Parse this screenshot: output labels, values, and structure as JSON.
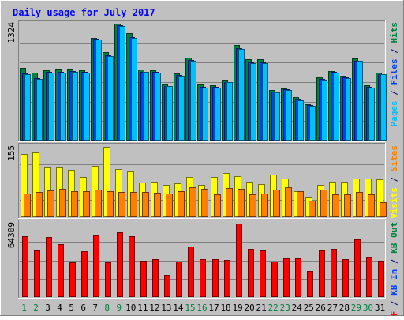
{
  "chart_data": {
    "type": "bar",
    "title": "Daily usage for July 2017",
    "categories": [
      "1",
      "2",
      "3",
      "4",
      "5",
      "6",
      "7",
      "8",
      "9",
      "10",
      "11",
      "12",
      "13",
      "14",
      "15",
      "16",
      "17",
      "18",
      "19",
      "20",
      "21",
      "22",
      "23",
      "24",
      "25",
      "26",
      "27",
      "28",
      "29",
      "30",
      "31"
    ],
    "weekend_days": [
      "1",
      "2",
      "8",
      "9",
      "15",
      "16",
      "22",
      "23",
      "29",
      "30"
    ],
    "grid": true,
    "panels": [
      {
        "id": "top",
        "max_label": "1324",
        "ymax": 1324,
        "legend": [
          {
            "text": "Pages",
            "color": "#00c0ff"
          },
          {
            "text": " / ",
            "color": "#000080"
          },
          {
            "text": "Files",
            "color": "#0040ff"
          },
          {
            "text": " / ",
            "color": "#000080"
          },
          {
            "text": "Hits",
            "color": "#008040"
          }
        ],
        "series": [
          {
            "name": "Hits",
            "color": "#008040",
            "values": [
              820,
              765,
              800,
              810,
              810,
              795,
              1165,
              1000,
              1324,
              1215,
              805,
              800,
              645,
              760,
              940,
              640,
              630,
              685,
              1085,
              920,
              920,
              570,
              590,
              490,
              410,
              720,
              790,
              730,
              930,
              625,
              765
            ]
          },
          {
            "name": "Files",
            "color": "#0040ff",
            "values": [
              760,
              710,
              775,
              775,
              785,
              775,
              1150,
              970,
              1305,
              1170,
              780,
              775,
              620,
              740,
              910,
              610,
              605,
              665,
              1050,
              885,
              885,
              555,
              580,
              475,
              400,
              695,
              775,
              720,
              905,
              610,
              755
            ]
          },
          {
            "name": "Pages",
            "color": "#00c0ff",
            "values": [
              755,
              700,
              770,
              770,
              780,
              770,
              1145,
              960,
              1300,
              1160,
              775,
              770,
              615,
              735,
              905,
              600,
              600,
              660,
              1040,
              880,
              880,
              550,
              575,
              460,
              395,
              690,
              770,
              710,
              900,
              600,
              750
            ]
          }
        ]
      },
      {
        "id": "middle",
        "max_label": "155",
        "ymax": 155,
        "legend": [
          {
            "text": "Visits",
            "color": "#ffff00"
          },
          {
            "text": " / ",
            "color": "#000080"
          },
          {
            "text": "Sites",
            "color": "#ff8000"
          }
        ],
        "series": [
          {
            "name": "Visits",
            "color": "#ffff00",
            "values": [
              140,
              142,
              112,
              112,
              105,
              88,
              113,
              155,
              106,
              101,
              76,
              78,
              71,
              75,
              88,
              72,
              88,
              98,
              91,
              78,
              74,
              94,
              86,
              58,
              45,
              71,
              78,
              78,
              86,
              86,
              83
            ]
          },
          {
            "name": "Sites",
            "color": "#ff8000",
            "values": [
              52,
              56,
              60,
              62,
              58,
              57,
              61,
              58,
              55,
              56,
              55,
              54,
              53,
              58,
              66,
              63,
              50,
              64,
              62,
              50,
              53,
              61,
              67,
              58,
              36,
              61,
              50,
              50,
              56,
              51,
              33
            ]
          }
        ]
      },
      {
        "id": "bottom",
        "max_label": "64309",
        "ymax": 64309,
        "legend": [
          {
            "text": "KB F",
            "color": "#ff0000"
          },
          {
            "text": " / ",
            "color": "#000080"
          },
          {
            "text": "KB In",
            "color": "#0040ff"
          },
          {
            "text": " / ",
            "color": "#000080"
          },
          {
            "text": "KB Out",
            "color": "#008040"
          }
        ],
        "series": [
          {
            "name": "KB F",
            "color": "#ff0000",
            "values": [
              53000,
              41000,
              52500,
              46000,
              30500,
              40000,
              54000,
              30500,
              57000,
              53500,
              31500,
              33500,
              19500,
              31000,
              44500,
              33000,
              33500,
              32500,
              64309,
              42000,
              40500,
              31000,
              34000,
              34000,
              22500,
              40500,
              42500,
              33000,
              50500,
              35000,
              31500
            ]
          }
        ]
      }
    ]
  }
}
